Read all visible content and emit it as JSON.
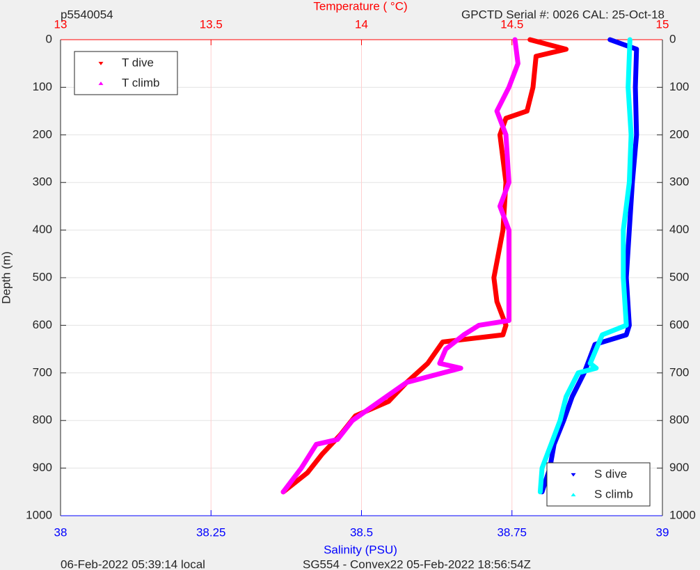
{
  "chart_data": {
    "type": "profile",
    "title": "p5540054",
    "subtitle": "GPCTD Serial #: 0026 CAL: 25-Oct-18",
    "xlabel": "Temperature (   °C)",
    "x2label": "Salinity (PSU)",
    "ylabel": "Depth (m)",
    "footer_left": "06-Feb-2022 05:39:14 local",
    "footer_right": "SG554 - Convex22 05-Feb-2022 18:56:54Z",
    "xlim": [
      13,
      15
    ],
    "xticks": [
      13,
      13.5,
      14,
      14.5,
      15
    ],
    "x_color": "#ff0000",
    "x2lim": [
      38,
      39
    ],
    "x2ticks": [
      38,
      38.25,
      38.5,
      38.75,
      39
    ],
    "x2_color": "#0000ff",
    "ylim": [
      0,
      1000
    ],
    "yticks": [
      0,
      100,
      200,
      300,
      400,
      500,
      600,
      700,
      800,
      900,
      1000
    ],
    "invert_y": true,
    "grid": true,
    "legend_loc": "upper left",
    "legend2_loc": "lower right",
    "series": [
      {
        "name": "T dive",
        "color": "#ff0000",
        "axis": "x",
        "marker": "down",
        "depth": [
          0,
          20,
          35,
          100,
          150,
          165,
          200,
          300,
          400,
          500,
          550,
          600,
          620,
          635,
          680,
          720,
          760,
          790,
          830,
          870,
          910,
          950
        ],
        "values": [
          14.56,
          14.68,
          14.58,
          14.57,
          14.55,
          14.48,
          14.46,
          14.48,
          14.47,
          14.44,
          14.45,
          14.48,
          14.47,
          14.27,
          14.22,
          14.15,
          14.09,
          13.98,
          13.93,
          13.87,
          13.82,
          13.74
        ]
      },
      {
        "name": "T climb",
        "color": "#ff00ff",
        "axis": "x",
        "marker": "up",
        "depth": [
          0,
          50,
          100,
          150,
          200,
          300,
          350,
          400,
          500,
          590,
          600,
          620,
          650,
          680,
          690,
          720,
          760,
          800,
          840,
          850,
          900,
          950
        ],
        "values": [
          14.51,
          14.52,
          14.49,
          14.45,
          14.48,
          14.49,
          14.46,
          14.49,
          14.49,
          14.49,
          14.39,
          14.34,
          14.28,
          14.26,
          14.33,
          14.15,
          14.06,
          13.97,
          13.92,
          13.85,
          13.8,
          13.74
        ]
      },
      {
        "name": "S dive",
        "color": "#0000ff",
        "axis": "x2",
        "marker": "down",
        "depth": [
          0,
          20,
          100,
          200,
          300,
          400,
          500,
          600,
          620,
          640,
          700,
          750,
          800,
          850,
          900,
          950
        ],
        "values": [
          38.913,
          38.957,
          38.955,
          38.957,
          38.95,
          38.945,
          38.94,
          38.945,
          38.94,
          38.888,
          38.87,
          38.85,
          38.836,
          38.82,
          38.813,
          38.8
        ]
      },
      {
        "name": "S climb",
        "color": "#00ffff",
        "axis": "x2",
        "marker": "up",
        "depth": [
          0,
          100,
          200,
          300,
          400,
          500,
          600,
          620,
          680,
          690,
          700,
          750,
          800,
          850,
          900,
          950
        ],
        "values": [
          38.946,
          38.943,
          38.948,
          38.945,
          38.935,
          38.935,
          38.94,
          38.9,
          38.88,
          38.89,
          38.86,
          38.84,
          38.83,
          38.815,
          38.8,
          38.797
        ]
      }
    ]
  }
}
